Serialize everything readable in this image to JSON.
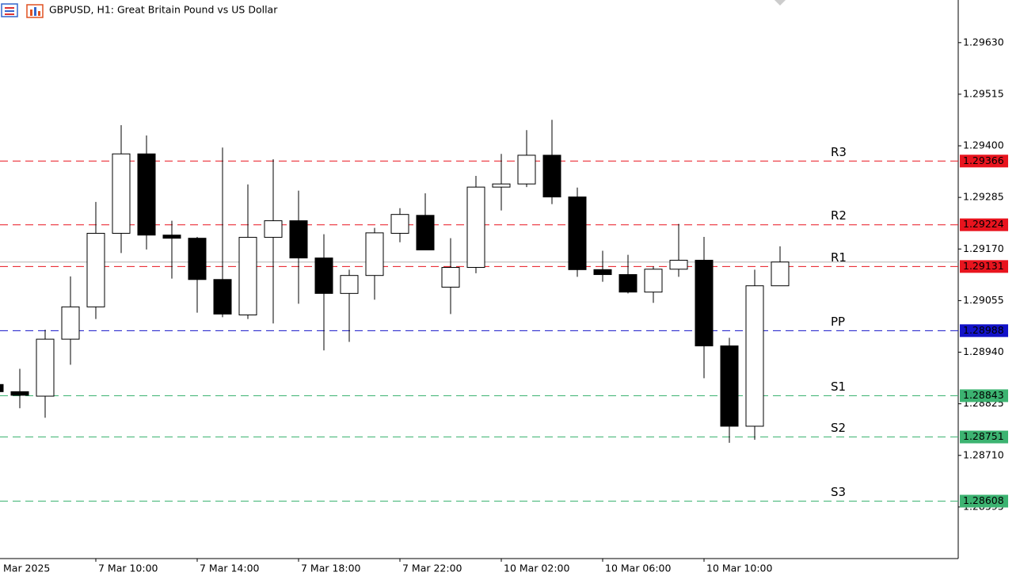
{
  "chart_data": {
    "type": "candlestick",
    "title": "GBPUSD, H1:  Great Britain Pound vs US Dollar",
    "categories": [
      "Mar 2025",
      null,
      null,
      null,
      "7 Mar 10:00",
      null,
      null,
      null,
      "7 Mar 14:00",
      null,
      null,
      null,
      "7 Mar 18:00",
      null,
      null,
      null,
      "7 Mar 22:00",
      null,
      null,
      null,
      "10 Mar 02:00",
      null,
      null,
      null,
      "10 Mar 06:00",
      null,
      null,
      null,
      "10 Mar 10:00",
      null,
      null,
      null
    ],
    "ohlc": {
      "open": [
        1.28868,
        1.28852,
        1.28842,
        1.28969,
        1.29041,
        1.29205,
        1.29382,
        1.29201,
        1.29194,
        1.29102,
        1.29023,
        1.29196,
        1.29233,
        1.2915,
        1.29071,
        1.29111,
        1.29205,
        1.29245,
        1.29085,
        1.29129,
        1.29308,
        1.29315,
        1.29379,
        1.29286,
        1.29124,
        1.29113,
        1.29074,
        1.29125,
        1.29145,
        1.28954,
        1.28775,
        1.29088
      ],
      "high": [
        1.28877,
        1.28903,
        1.2899,
        1.29109,
        1.29275,
        1.29446,
        1.29423,
        1.29233,
        1.29197,
        1.29396,
        1.29314,
        1.2937,
        1.293,
        1.29203,
        1.29124,
        1.29217,
        1.29261,
        1.29294,
        1.29194,
        1.29333,
        1.29382,
        1.29435,
        1.29458,
        1.29307,
        1.29166,
        1.29157,
        1.29131,
        1.29226,
        1.29197,
        1.28972,
        1.29124,
        1.29176
      ],
      "low": [
        1.28845,
        1.28815,
        1.28794,
        1.28912,
        1.29014,
        1.29161,
        1.29169,
        1.29104,
        1.29028,
        1.29018,
        1.29014,
        1.29004,
        1.29048,
        1.28944,
        1.28963,
        1.29057,
        1.29185,
        1.29168,
        1.29025,
        1.29116,
        1.29256,
        1.29308,
        1.2927,
        1.29108,
        1.29097,
        1.29071,
        1.2905,
        1.29108,
        1.28882,
        1.28738,
        1.28745,
        1.29088
      ],
      "close": [
        1.28852,
        1.28844,
        1.28969,
        1.29041,
        1.29205,
        1.29382,
        1.29201,
        1.29194,
        1.29102,
        1.29025,
        1.29196,
        1.29233,
        1.2915,
        1.29071,
        1.29111,
        1.29206,
        1.29247,
        1.29168,
        1.29129,
        1.29308,
        1.29315,
        1.29379,
        1.29286,
        1.29124,
        1.29113,
        1.29074,
        1.29125,
        1.29145,
        1.28954,
        1.28775,
        1.29088,
        1.29141
      ]
    },
    "up_color": "#ffffff",
    "down_color": "#000000",
    "ylim": [
      1.2848,
      1.29725
    ],
    "yticks": [
      {
        "value": 1.2963,
        "label": "1.29630"
      },
      {
        "value": 1.29515,
        "label": "1.29515"
      },
      {
        "value": 1.294,
        "label": "1.29400"
      },
      {
        "value": 1.29285,
        "label": "1.29285"
      },
      {
        "value": 1.2917,
        "label": "1.29170"
      },
      {
        "value": 1.29055,
        "label": "1.29055"
      },
      {
        "value": 1.2894,
        "label": "1.28940"
      },
      {
        "value": 1.28825,
        "label": "1.28825"
      },
      {
        "value": 1.2871,
        "label": "1.28710"
      },
      {
        "value": 1.28595,
        "label": "1.28595"
      }
    ],
    "price_line": 1.29141,
    "levels": [
      {
        "name": "R3",
        "value": 1.29366,
        "color": "#e8141e"
      },
      {
        "name": "R2",
        "value": 1.29224,
        "color": "#e8141e"
      },
      {
        "name": "R1",
        "value": 1.29131,
        "color": "#e8141e"
      },
      {
        "name": "PP",
        "value": 1.28988,
        "color": "#1212c8"
      },
      {
        "name": "S1",
        "value": 1.28843,
        "color": "#3cb371"
      },
      {
        "name": "S2",
        "value": 1.28751,
        "color": "#3cb371"
      },
      {
        "name": "S3",
        "value": 1.28608,
        "color": "#3cb371"
      }
    ]
  }
}
